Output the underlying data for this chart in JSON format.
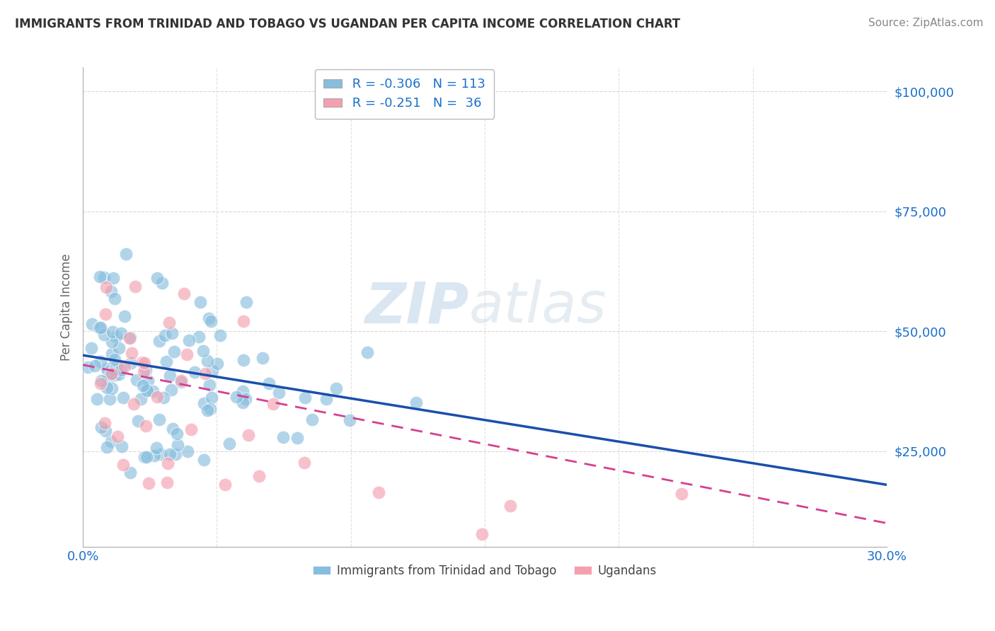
{
  "title": "IMMIGRANTS FROM TRINIDAD AND TOBAGO VS UGANDAN PER CAPITA INCOME CORRELATION CHART",
  "source": "Source: ZipAtlas.com",
  "ylabel": "Per Capita Income",
  "watermark_zip": "ZIP",
  "watermark_atlas": "atlas",
  "xlim": [
    0.0,
    0.3
  ],
  "ylim": [
    5000,
    105000
  ],
  "yticks": [
    25000,
    50000,
    75000,
    100000
  ],
  "ytick_labels": [
    "$25,000",
    "$50,000",
    "$75,000",
    "$100,000"
  ],
  "xticks": [
    0.0,
    0.05,
    0.1,
    0.15,
    0.2,
    0.25,
    0.3
  ],
  "xtick_labels": [
    "0.0%",
    "",
    "",
    "",
    "",
    "",
    "30.0%"
  ],
  "blue_color": "#87BEDE",
  "pink_color": "#F4A0B0",
  "blue_line_color": "#1A4FAA",
  "pink_line_color": "#D44090",
  "label1": "Immigrants from Trinidad and Tobago",
  "label2": "Ugandans",
  "R1": -0.306,
  "N1": 113,
  "R2": -0.251,
  "N2": 36,
  "blue_intercept": 45000,
  "blue_slope": -90000,
  "pink_intercept": 43000,
  "pink_slope": -110000,
  "title_fontsize": 12,
  "tick_label_color": "#1A6FCC",
  "background_color": "#ffffff",
  "grid_color": "#D8D8D8",
  "grid_color_x": "#E0E0E0"
}
